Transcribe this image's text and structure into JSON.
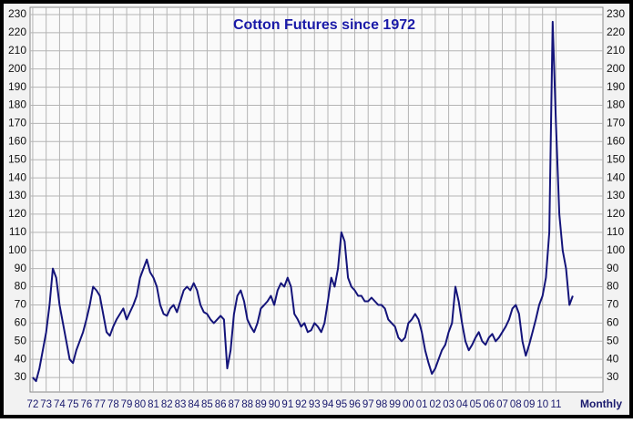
{
  "chart_data": {
    "type": "line",
    "title": "Cotton Futures since 1972",
    "x_label": "Monthly",
    "xlim": [
      1971.8,
      2014.5
    ],
    "ylim": [
      22,
      234
    ],
    "yticks": [
      30,
      40,
      50,
      60,
      70,
      80,
      90,
      100,
      110,
      120,
      130,
      140,
      150,
      160,
      170,
      180,
      190,
      200,
      210,
      220,
      230
    ],
    "xticks": [
      {
        "value": 1972,
        "label": "72"
      },
      {
        "value": 1973,
        "label": "73"
      },
      {
        "value": 1974,
        "label": "74"
      },
      {
        "value": 1975,
        "label": "75"
      },
      {
        "value": 1976,
        "label": "76"
      },
      {
        "value": 1977,
        "label": "77"
      },
      {
        "value": 1978,
        "label": "78"
      },
      {
        "value": 1979,
        "label": "79"
      },
      {
        "value": 1980,
        "label": "80"
      },
      {
        "value": 1981,
        "label": "81"
      },
      {
        "value": 1982,
        "label": "82"
      },
      {
        "value": 1983,
        "label": "83"
      },
      {
        "value": 1984,
        "label": "84"
      },
      {
        "value": 1985,
        "label": "85"
      },
      {
        "value": 1986,
        "label": "86"
      },
      {
        "value": 1987,
        "label": "87"
      },
      {
        "value": 1988,
        "label": "88"
      },
      {
        "value": 1989,
        "label": "89"
      },
      {
        "value": 1990,
        "label": "90"
      },
      {
        "value": 1991,
        "label": "91"
      },
      {
        "value": 1992,
        "label": "92"
      },
      {
        "value": 1993,
        "label": "93"
      },
      {
        "value": 1994,
        "label": "94"
      },
      {
        "value": 1995,
        "label": "95"
      },
      {
        "value": 1996,
        "label": "96"
      },
      {
        "value": 1997,
        "label": "97"
      },
      {
        "value": 1998,
        "label": "98"
      },
      {
        "value": 1999,
        "label": "99"
      },
      {
        "value": 2000,
        "label": "00"
      },
      {
        "value": 2001,
        "label": "01"
      },
      {
        "value": 2002,
        "label": "02"
      },
      {
        "value": 2003,
        "label": "03"
      },
      {
        "value": 2004,
        "label": "04"
      },
      {
        "value": 2005,
        "label": "05"
      },
      {
        "value": 2006,
        "label": "06"
      },
      {
        "value": 2007,
        "label": "07"
      },
      {
        "value": 2008,
        "label": "08"
      },
      {
        "value": 2009,
        "label": "09"
      },
      {
        "value": 2010,
        "label": "10"
      },
      {
        "value": 2011,
        "label": "11"
      }
    ],
    "grid": true,
    "x": [
      1972,
      1972.25,
      1972.5,
      1972.75,
      1973,
      1973.25,
      1973.5,
      1973.75,
      1974,
      1974.25,
      1974.5,
      1974.75,
      1975,
      1975.25,
      1975.5,
      1975.75,
      1976,
      1976.25,
      1976.5,
      1976.75,
      1977,
      1977.25,
      1977.5,
      1977.75,
      1978,
      1978.25,
      1978.5,
      1978.75,
      1979,
      1979.25,
      1979.5,
      1979.75,
      1980,
      1980.25,
      1980.5,
      1980.75,
      1981,
      1981.25,
      1981.5,
      1981.75,
      1982,
      1982.25,
      1982.5,
      1982.75,
      1983,
      1983.25,
      1983.5,
      1983.75,
      1984,
      1984.25,
      1984.5,
      1984.75,
      1985,
      1985.25,
      1985.5,
      1985.75,
      1986,
      1986.25,
      1986.5,
      1986.75,
      1987,
      1987.25,
      1987.5,
      1987.75,
      1988,
      1988.25,
      1988.5,
      1988.75,
      1989,
      1989.25,
      1989.5,
      1989.75,
      1990,
      1990.25,
      1990.5,
      1990.75,
      1991,
      1991.25,
      1991.5,
      1991.75,
      1992,
      1992.25,
      1992.5,
      1992.75,
      1993,
      1993.25,
      1993.5,
      1993.75,
      1994,
      1994.25,
      1994.5,
      1994.75,
      1995,
      1995.25,
      1995.5,
      1995.75,
      1996,
      1996.25,
      1996.5,
      1996.75,
      1997,
      1997.25,
      1997.5,
      1997.75,
      1998,
      1998.25,
      1998.5,
      1998.75,
      1999,
      1999.25,
      1999.5,
      1999.75,
      2000,
      2000.25,
      2000.5,
      2000.75,
      2001,
      2001.25,
      2001.5,
      2001.75,
      2002,
      2002.25,
      2002.5,
      2002.75,
      2003,
      2003.25,
      2003.5,
      2003.75,
      2004,
      2004.25,
      2004.5,
      2004.75,
      2005,
      2005.25,
      2005.5,
      2005.75,
      2006,
      2006.25,
      2006.5,
      2006.75,
      2007,
      2007.25,
      2007.5,
      2007.75,
      2008,
      2008.25,
      2008.5,
      2008.75,
      2009,
      2009.25,
      2009.5,
      2009.75,
      2010,
      2010.25,
      2010.5,
      2010.75,
      2011,
      2011.25,
      2011.5,
      2011.75,
      2012,
      2012.25
    ],
    "series": [
      {
        "color": "#14147a",
        "values": [
          30,
          28,
          35,
          45,
          55,
          70,
          90,
          85,
          70,
          60,
          50,
          40,
          38,
          45,
          50,
          55,
          62,
          70,
          80,
          78,
          75,
          65,
          55,
          53,
          58,
          62,
          65,
          68,
          62,
          66,
          70,
          75,
          85,
          90,
          95,
          88,
          85,
          80,
          70,
          65,
          64,
          68,
          70,
          66,
          72,
          78,
          80,
          78,
          82,
          78,
          70,
          66,
          65,
          62,
          60,
          62,
          64,
          62,
          35,
          45,
          65,
          75,
          78,
          72,
          62,
          58,
          55,
          60,
          68,
          70,
          72,
          75,
          70,
          78,
          82,
          80,
          85,
          80,
          65,
          62,
          58,
          60,
          55,
          56,
          60,
          58,
          55,
          60,
          72,
          85,
          80,
          90,
          110,
          105,
          85,
          80,
          78,
          75,
          75,
          72,
          72,
          74,
          72,
          70,
          70,
          68,
          62,
          60,
          58,
          52,
          50,
          52,
          60,
          62,
          65,
          62,
          55,
          45,
          38,
          32,
          35,
          40,
          45,
          48,
          55,
          60,
          80,
          72,
          60,
          50,
          45,
          48,
          52,
          55,
          50,
          48,
          52,
          54,
          50,
          52,
          55,
          58,
          62,
          68,
          70,
          65,
          50,
          42,
          48,
          55,
          62,
          70,
          75,
          85,
          110,
          226,
          170,
          120,
          100,
          90,
          70,
          75
        ]
      }
    ]
  }
}
